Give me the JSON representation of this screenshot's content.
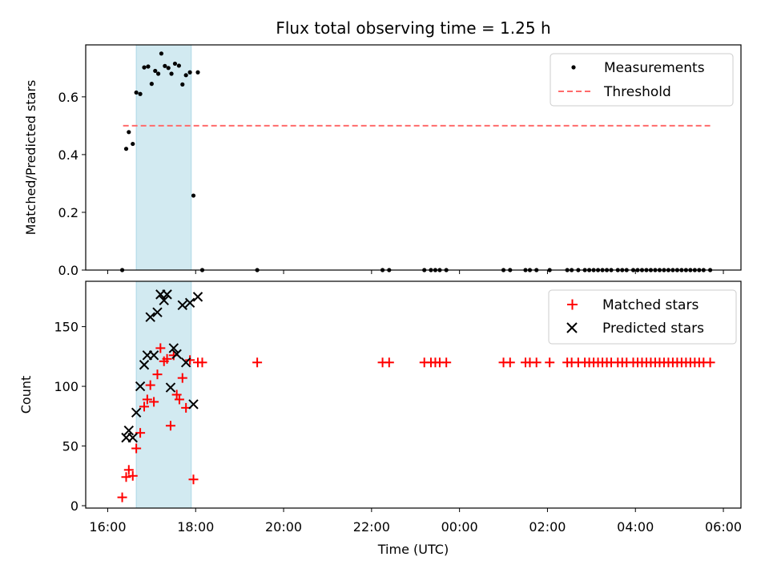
{
  "chart_data": [
    {
      "type": "scatter",
      "title": "Flux total observing time = 1.25 h",
      "xlabel": "",
      "ylabel": "Matched/Predicted stars",
      "x_unit": "hours since 16:00 UTC",
      "xlim": [
        -0.5,
        14.4
      ],
      "ylim": [
        0,
        0.78
      ],
      "yticks": [
        0.0,
        0.2,
        0.4,
        0.6
      ],
      "ytick_labels": [
        "0.0",
        "0.2",
        "0.4",
        "0.6"
      ],
      "shaded_span": [
        0.65,
        1.9
      ],
      "shaded_color": "#add8e6",
      "legend_position": "top-right",
      "threshold": {
        "name": "Threshold",
        "y": 0.5,
        "x_range": [
          0.35,
          13.7
        ],
        "color": "#ff6b6b",
        "style": "dashed"
      },
      "series": [
        {
          "name": "Measurements",
          "color": "#000000",
          "marker": "dot",
          "points": [
            [
              0.33,
              0.0
            ],
            [
              0.42,
              0.42
            ],
            [
              0.48,
              0.478
            ],
            [
              0.57,
              0.437
            ],
            [
              0.65,
              0.615
            ],
            [
              0.74,
              0.61
            ],
            [
              0.83,
              0.702
            ],
            [
              0.92,
              0.705
            ],
            [
              1.0,
              0.645
            ],
            [
              1.08,
              0.69
            ],
            [
              1.15,
              0.68
            ],
            [
              1.22,
              0.75
            ],
            [
              1.3,
              0.707
            ],
            [
              1.38,
              0.7
            ],
            [
              1.45,
              0.68
            ],
            [
              1.53,
              0.715
            ],
            [
              1.62,
              0.708
            ],
            [
              1.7,
              0.643
            ],
            [
              1.78,
              0.675
            ],
            [
              1.87,
              0.685
            ],
            [
              1.95,
              0.258
            ],
            [
              2.05,
              0.685
            ],
            [
              2.15,
              0.0
            ],
            [
              3.4,
              0.0
            ],
            [
              6.25,
              0.0
            ],
            [
              6.4,
              0.0
            ],
            [
              7.2,
              0.0
            ],
            [
              7.35,
              0.0
            ],
            [
              7.45,
              0.0
            ],
            [
              7.55,
              0.0
            ],
            [
              7.7,
              0.0
            ],
            [
              9.0,
              0.0
            ],
            [
              9.15,
              0.0
            ],
            [
              9.5,
              0.0
            ],
            [
              9.6,
              0.0
            ],
            [
              9.75,
              0.0
            ],
            [
              10.05,
              0.0
            ],
            [
              10.45,
              0.0
            ],
            [
              10.55,
              0.0
            ],
            [
              10.7,
              0.0
            ],
            [
              10.85,
              0.0
            ],
            [
              10.95,
              0.0
            ],
            [
              11.05,
              0.0
            ],
            [
              11.15,
              0.0
            ],
            [
              11.25,
              0.0
            ],
            [
              11.35,
              0.0
            ],
            [
              11.45,
              0.0
            ],
            [
              11.6,
              0.0
            ],
            [
              11.7,
              0.0
            ],
            [
              11.8,
              0.0
            ],
            [
              11.95,
              0.0
            ],
            [
              12.05,
              0.0
            ],
            [
              12.15,
              0.0
            ],
            [
              12.25,
              0.0
            ],
            [
              12.35,
              0.0
            ],
            [
              12.45,
              0.0
            ],
            [
              12.55,
              0.0
            ],
            [
              12.65,
              0.0
            ],
            [
              12.75,
              0.0
            ],
            [
              12.85,
              0.0
            ],
            [
              12.95,
              0.0
            ],
            [
              13.05,
              0.0
            ],
            [
              13.15,
              0.0
            ],
            [
              13.25,
              0.0
            ],
            [
              13.35,
              0.0
            ],
            [
              13.45,
              0.0
            ],
            [
              13.55,
              0.0
            ],
            [
              13.7,
              0.0
            ]
          ]
        }
      ]
    },
    {
      "type": "scatter",
      "title": "",
      "xlabel": "Time (UTC)",
      "ylabel": "Count",
      "x_unit": "hours since 16:00 UTC",
      "xlim": [
        -0.5,
        14.4
      ],
      "ylim": [
        -2,
        188
      ],
      "xticks": [
        0,
        2,
        4,
        6,
        8,
        10,
        12,
        14
      ],
      "xtick_labels": [
        "16:00",
        "18:00",
        "20:00",
        "22:00",
        "00:00",
        "02:00",
        "04:00",
        "06:00"
      ],
      "yticks": [
        0,
        50,
        100,
        150
      ],
      "ytick_labels": [
        "0",
        "50",
        "100",
        "150"
      ],
      "shaded_span": [
        0.65,
        1.9
      ],
      "shaded_color": "#add8e6",
      "legend_position": "top-right",
      "series": [
        {
          "name": "Matched stars",
          "color": "#ff0000",
          "marker": "plus",
          "points": [
            [
              0.33,
              7
            ],
            [
              0.42,
              24
            ],
            [
              0.48,
              30
            ],
            [
              0.57,
              25
            ],
            [
              0.65,
              48
            ],
            [
              0.74,
              61
            ],
            [
              0.83,
              83
            ],
            [
              0.9,
              89
            ],
            [
              0.97,
              101
            ],
            [
              1.05,
              87
            ],
            [
              1.13,
              110
            ],
            [
              1.2,
              132
            ],
            [
              1.28,
              121
            ],
            [
              1.35,
              123
            ],
            [
              1.43,
              67
            ],
            [
              1.5,
              126
            ],
            [
              1.57,
              93
            ],
            [
              1.63,
              89
            ],
            [
              1.7,
              107
            ],
            [
              1.78,
              82
            ],
            [
              1.87,
              122
            ],
            [
              1.95,
              22
            ],
            [
              2.05,
              120
            ],
            [
              2.15,
              120
            ],
            [
              3.4,
              120
            ],
            [
              6.25,
              120
            ],
            [
              6.4,
              120
            ],
            [
              7.2,
              120
            ],
            [
              7.35,
              120
            ],
            [
              7.45,
              120
            ],
            [
              7.55,
              120
            ],
            [
              7.7,
              120
            ],
            [
              9.0,
              120
            ],
            [
              9.15,
              120
            ],
            [
              9.5,
              120
            ],
            [
              9.6,
              120
            ],
            [
              9.75,
              120
            ],
            [
              10.05,
              120
            ],
            [
              10.45,
              120
            ],
            [
              10.55,
              120
            ],
            [
              10.7,
              120
            ],
            [
              10.85,
              120
            ],
            [
              10.95,
              120
            ],
            [
              11.05,
              120
            ],
            [
              11.15,
              120
            ],
            [
              11.25,
              120
            ],
            [
              11.35,
              120
            ],
            [
              11.45,
              120
            ],
            [
              11.6,
              120
            ],
            [
              11.7,
              120
            ],
            [
              11.8,
              120
            ],
            [
              11.95,
              120
            ],
            [
              12.05,
              120
            ],
            [
              12.15,
              120
            ],
            [
              12.25,
              120
            ],
            [
              12.35,
              120
            ],
            [
              12.45,
              120
            ],
            [
              12.55,
              120
            ],
            [
              12.65,
              120
            ],
            [
              12.75,
              120
            ],
            [
              12.85,
              120
            ],
            [
              12.95,
              120
            ],
            [
              13.05,
              120
            ],
            [
              13.15,
              120
            ],
            [
              13.25,
              120
            ],
            [
              13.35,
              120
            ],
            [
              13.45,
              120
            ],
            [
              13.55,
              120
            ],
            [
              13.7,
              120
            ]
          ]
        },
        {
          "name": "Predicted stars",
          "color": "#000000",
          "marker": "x",
          "points": [
            [
              0.42,
              57
            ],
            [
              0.48,
              63
            ],
            [
              0.57,
              57
            ],
            [
              0.65,
              78
            ],
            [
              0.74,
              100
            ],
            [
              0.83,
              118
            ],
            [
              0.9,
              126
            ],
            [
              0.97,
              158
            ],
            [
              1.05,
              126
            ],
            [
              1.13,
              162
            ],
            [
              1.2,
              177
            ],
            [
              1.28,
              172
            ],
            [
              1.35,
              177
            ],
            [
              1.43,
              99
            ],
            [
              1.5,
              132
            ],
            [
              1.57,
              127
            ],
            [
              1.7,
              168
            ],
            [
              1.78,
              120
            ],
            [
              1.87,
              170
            ],
            [
              1.95,
              85
            ],
            [
              2.05,
              175
            ]
          ]
        }
      ]
    }
  ]
}
